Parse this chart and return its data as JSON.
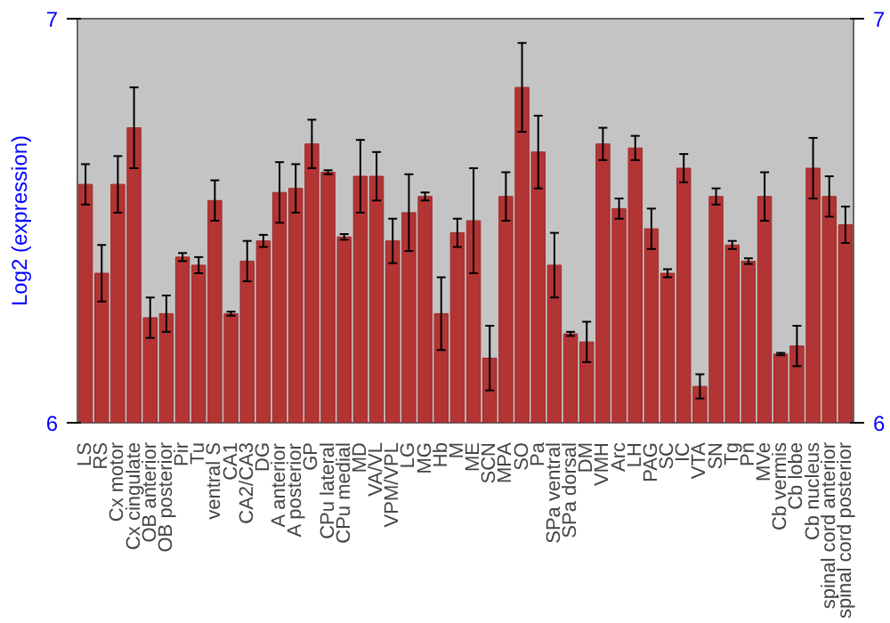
{
  "chart_data": {
    "type": "bar",
    "ylabel": "Log2 (expression)",
    "categories": [
      "LS",
      "RS",
      "Cx motor",
      "Cx cingulate",
      "OB anterior",
      "OB posterior",
      "Pir",
      "Tu",
      "ventral S",
      "CA1",
      "CA2/CA3",
      "DG",
      "A anterior",
      "A posterior",
      "GP",
      "CPu lateral",
      "CPu medial",
      "MD",
      "VA/VL",
      "VPM/VPL",
      "LG",
      "MG",
      "Hb",
      "M",
      "ME",
      "SCN",
      "MPA",
      "SO",
      "Pa",
      "SPa ventral",
      "SPa dorsal",
      "DM",
      "VMH",
      "Arc",
      "LH",
      "PAG",
      "SC",
      "IC",
      "VTA",
      "SN",
      "Tg",
      "Pn",
      "MVe",
      "Cb vermis",
      "Cb lobe",
      "Cb nucleus",
      "spinal cord anterior",
      "spinal cord posterior"
    ],
    "values": [
      6.59,
      6.37,
      6.59,
      6.73,
      6.26,
      6.27,
      6.41,
      6.39,
      6.55,
      6.27,
      6.4,
      6.45,
      6.57,
      6.58,
      6.69,
      6.62,
      6.46,
      6.61,
      6.61,
      6.45,
      6.52,
      6.56,
      6.27,
      6.47,
      6.5,
      6.16,
      6.56,
      6.83,
      6.67,
      6.39,
      6.22,
      6.2,
      6.69,
      6.53,
      6.68,
      6.48,
      6.37,
      6.63,
      6.09,
      6.56,
      6.44,
      6.4,
      6.56,
      6.17,
      6.19,
      6.63,
      6.56,
      6.49
    ],
    "errors": [
      0.05,
      0.07,
      0.07,
      0.1,
      0.05,
      0.045,
      0.01,
      0.02,
      0.05,
      0.005,
      0.05,
      0.015,
      0.075,
      0.06,
      0.06,
      0.005,
      0.007,
      0.09,
      0.06,
      0.055,
      0.095,
      0.01,
      0.09,
      0.035,
      0.13,
      0.08,
      0.06,
      0.11,
      0.09,
      0.08,
      0.005,
      0.05,
      0.04,
      0.025,
      0.03,
      0.05,
      0.01,
      0.035,
      0.03,
      0.02,
      0.01,
      0.007,
      0.06,
      0.003,
      0.05,
      0.075,
      0.05,
      0.045
    ],
    "color": "#b33434",
    "ylim": [
      6,
      7
    ],
    "yticks": [
      6,
      7
    ],
    "y2lim": [
      6,
      7
    ],
    "y2ticks": [
      6,
      7
    ],
    "grid": false
  }
}
